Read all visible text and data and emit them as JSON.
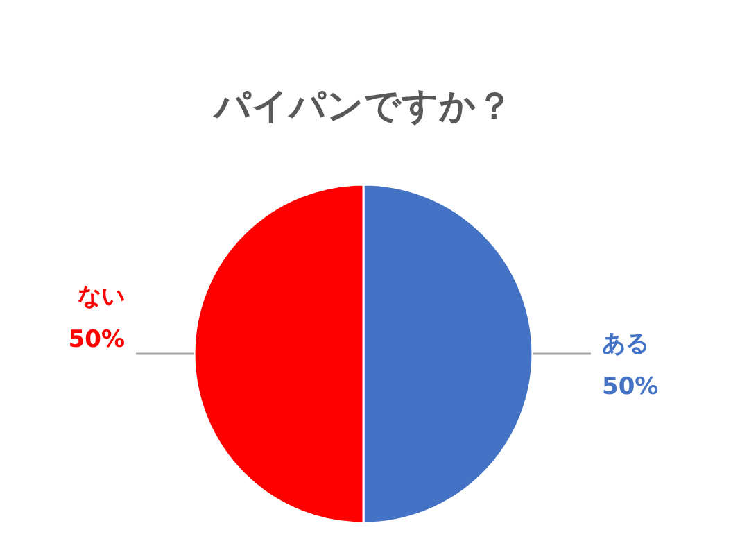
{
  "chart_data": {
    "type": "pie",
    "title": "パイパンですか？",
    "categories": [
      "ある",
      "ない"
    ],
    "values": [
      50,
      50
    ],
    "value_labels": [
      "50%",
      "50%"
    ],
    "colors": [
      "#4472c4",
      "#ff0000"
    ]
  }
}
